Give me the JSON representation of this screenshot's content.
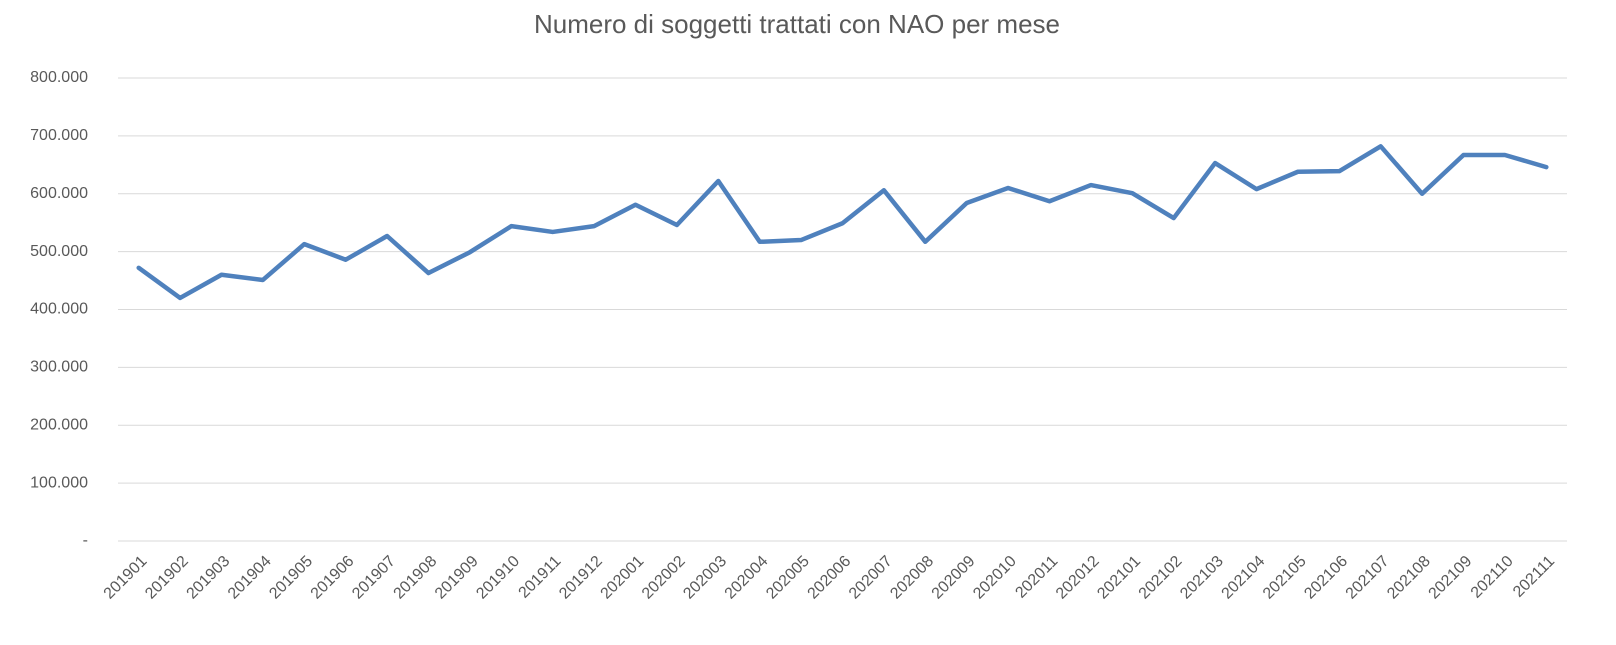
{
  "chart_data": {
    "type": "line",
    "title": "Numero di soggetti trattati con NAO per mese",
    "categories": [
      "201901",
      "201902",
      "201903",
      "201904",
      "201905",
      "201906",
      "201907",
      "201908",
      "201909",
      "201910",
      "201911",
      "201912",
      "202001",
      "202002",
      "202003",
      "202004",
      "202005",
      "202006",
      "202007",
      "202008",
      "202009",
      "202010",
      "202011",
      "202012",
      "202101",
      "202102",
      "202103",
      "202104",
      "202105",
      "202106",
      "202107",
      "202108",
      "202109",
      "202110",
      "202111"
    ],
    "values": [
      472000,
      420000,
      460000,
      451000,
      513000,
      486000,
      527000,
      463000,
      499000,
      544000,
      534000,
      544000,
      581000,
      546000,
      622000,
      517000,
      520000,
      549000,
      606000,
      517000,
      584000,
      610000,
      587000,
      615000,
      601000,
      558000,
      653000,
      608000,
      638000,
      639000,
      682000,
      600000,
      667000,
      667000,
      646000
    ],
    "color": "#4f81bd",
    "ylim": [
      0,
      800000
    ],
    "yticks": [
      {
        "value": 0,
        "label": "-"
      },
      {
        "value": 100000,
        "label": "100.000"
      },
      {
        "value": 200000,
        "label": "200.000"
      },
      {
        "value": 300000,
        "label": "300.000"
      },
      {
        "value": 400000,
        "label": "400.000"
      },
      {
        "value": 500000,
        "label": "500.000"
      },
      {
        "value": 600000,
        "label": "600.000"
      },
      {
        "value": 700000,
        "label": "700.000"
      },
      {
        "value": 800000,
        "label": "800.000"
      }
    ],
    "grid": true
  }
}
